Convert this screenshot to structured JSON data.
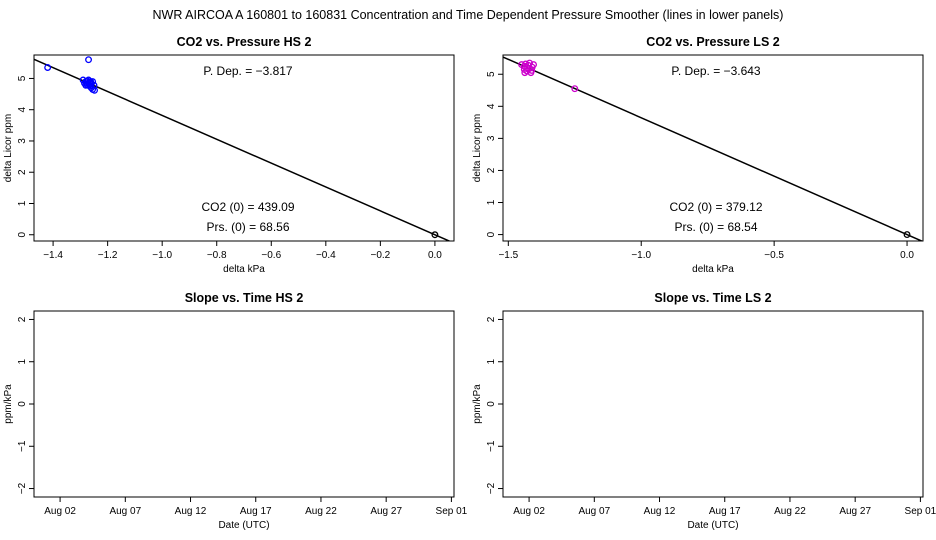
{
  "figure": {
    "title": "NWR   AIRCOA A   160801 to 160831   Concentration and Time Dependent Pressure Smoother (lines in lower panels)"
  },
  "colors": {
    "hs_points": "#0000ff",
    "ls_points": "#cc00cc",
    "line": "#000000",
    "origin_point": "#000000"
  },
  "chart_data": [
    {
      "id": "hs-scatter",
      "type": "scatter",
      "title": "CO2 vs. Pressure HS 2",
      "xlabel": "delta kPa",
      "ylabel": "delta Licor ppm",
      "xlim": [
        -1.47,
        0.07
      ],
      "ylim": [
        -0.2,
        5.75
      ],
      "xticks": [
        -1.4,
        -1.2,
        -1.0,
        -0.8,
        -0.6,
        -0.4,
        -0.2,
        0.0
      ],
      "xtick_labels": [
        "−1.4",
        "−1.2",
        "−1.0",
        "−0.8",
        "−0.6",
        "−0.4",
        "−0.2",
        "0.0"
      ],
      "yticks": [
        0,
        1,
        2,
        3,
        4,
        5
      ],
      "ytick_labels": [
        "0",
        "1",
        "2",
        "3",
        "4",
        "5"
      ],
      "line_slope": -3.817,
      "points": [
        {
          "x": -1.42,
          "y": 5.35
        },
        {
          "x": -1.27,
          "y": 5.6
        },
        {
          "x": -1.29,
          "y": 4.95
        },
        {
          "x": -1.285,
          "y": 4.85
        },
        {
          "x": -1.28,
          "y": 4.9
        },
        {
          "x": -1.275,
          "y": 4.8
        },
        {
          "x": -1.27,
          "y": 4.95
        },
        {
          "x": -1.27,
          "y": 4.85
        },
        {
          "x": -1.265,
          "y": 4.75
        },
        {
          "x": -1.265,
          "y": 4.88
        },
        {
          "x": -1.26,
          "y": 4.82
        },
        {
          "x": -1.26,
          "y": 4.7
        },
        {
          "x": -1.255,
          "y": 4.9
        },
        {
          "x": -1.25,
          "y": 4.78
        },
        {
          "x": -1.255,
          "y": 4.65
        },
        {
          "x": -1.248,
          "y": 4.62
        },
        {
          "x": -1.28,
          "y": 4.78
        },
        {
          "x": -1.275,
          "y": 4.92
        },
        {
          "x": -1.268,
          "y": 4.8
        },
        {
          "x": -1.262,
          "y": 4.9
        }
      ],
      "origin_point": {
        "x": 0.0,
        "y": 0.0
      },
      "annotations": {
        "p_dep": "P. Dep. =  −3.817",
        "co2_0": "CO2 (0) =  439.09",
        "prs_0": "Prs. (0) =  68.56"
      }
    },
    {
      "id": "ls-scatter",
      "type": "scatter",
      "title": "CO2 vs. Pressure LS 2",
      "xlabel": "delta kPa",
      "ylabel": "delta Licor ppm",
      "xlim": [
        -1.52,
        0.06
      ],
      "ylim": [
        -0.2,
        5.6
      ],
      "xticks": [
        -1.5,
        -1.0,
        -0.5,
        0.0
      ],
      "xtick_labels": [
        "−1.5",
        "−1.0",
        "−0.5",
        "0.0"
      ],
      "yticks": [
        0,
        1,
        2,
        3,
        4,
        5
      ],
      "ytick_labels": [
        "0",
        "1",
        "2",
        "3",
        "4",
        "5"
      ],
      "line_slope": -3.643,
      "points": [
        {
          "x": -1.45,
          "y": 5.3
        },
        {
          "x": -1.44,
          "y": 5.25
        },
        {
          "x": -1.44,
          "y": 5.15
        },
        {
          "x": -1.435,
          "y": 5.32
        },
        {
          "x": -1.43,
          "y": 5.2
        },
        {
          "x": -1.43,
          "y": 5.1
        },
        {
          "x": -1.425,
          "y": 5.28
        },
        {
          "x": -1.42,
          "y": 5.18
        },
        {
          "x": -1.415,
          "y": 5.05
        },
        {
          "x": -1.41,
          "y": 5.22
        },
        {
          "x": -1.405,
          "y": 5.3
        },
        {
          "x": -1.438,
          "y": 5.05
        },
        {
          "x": -1.42,
          "y": 5.35
        },
        {
          "x": -1.412,
          "y": 5.12
        },
        {
          "x": -1.25,
          "y": 4.55
        }
      ],
      "origin_point": {
        "x": 0.0,
        "y": 0.0
      },
      "annotations": {
        "p_dep": "P. Dep. =  −3.643",
        "co2_0": "CO2 (0) =  379.12",
        "prs_0": "Prs. (0) =  68.54"
      }
    },
    {
      "id": "hs-slope",
      "type": "line",
      "title": "Slope vs. Time HS 2",
      "xlabel": "Date (UTC)",
      "ylabel": "ppm/kPa",
      "xlim": [
        -1.0,
        31.2
      ],
      "ylim": [
        -2.2,
        2.2
      ],
      "xticks": [
        1,
        6,
        11,
        16,
        21,
        26,
        31
      ],
      "xtick_labels": [
        "Aug 02",
        "Aug 07",
        "Aug 12",
        "Aug 17",
        "Aug 22",
        "Aug 27",
        "Sep 01"
      ],
      "yticks": [
        -2,
        -1,
        0,
        1,
        2
      ],
      "ytick_labels": [
        "−2",
        "−1",
        "0",
        "1",
        "2"
      ],
      "series": []
    },
    {
      "id": "ls-slope",
      "type": "line",
      "title": "Slope vs. Time LS 2",
      "xlabel": "Date (UTC)",
      "ylabel": "ppm/kPa",
      "xlim": [
        -1.0,
        31.2
      ],
      "ylim": [
        -2.2,
        2.2
      ],
      "xticks": [
        1,
        6,
        11,
        16,
        21,
        26,
        31
      ],
      "xtick_labels": [
        "Aug 02",
        "Aug 07",
        "Aug 12",
        "Aug 17",
        "Aug 22",
        "Aug 27",
        "Sep 01"
      ],
      "yticks": [
        -2,
        -1,
        0,
        1,
        2
      ],
      "ytick_labels": [
        "−2",
        "−1",
        "0",
        "1",
        "2"
      ],
      "series": []
    }
  ]
}
